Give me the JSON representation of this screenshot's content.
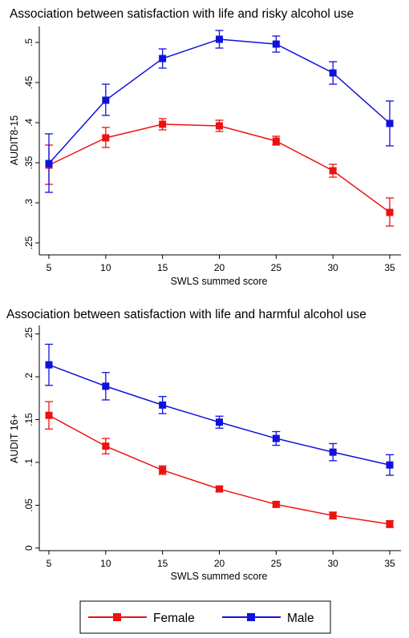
{
  "colors": {
    "female": "#ee1111",
    "male": "#1111dd"
  },
  "legend": {
    "female": "Female",
    "male": "Male",
    "marker": "square"
  },
  "chart_data": [
    {
      "type": "line",
      "title": "Association between satisfaction with life and risky alcohol use",
      "xlabel": "SWLS summed score",
      "ylabel": "AUDIT8-15",
      "x": [
        5,
        10,
        15,
        20,
        25,
        30,
        35
      ],
      "xticks": [
        "5",
        "10",
        "15",
        "20",
        "25",
        "30",
        "35"
      ],
      "yticks": [
        ".25",
        ".3",
        ".35",
        ".4",
        ".45",
        ".5"
      ],
      "ylim": [
        0.235,
        0.52
      ],
      "grid": false,
      "series": [
        {
          "name": "Female",
          "key": "female",
          "values": [
            0.347,
            0.381,
            0.398,
            0.396,
            0.377,
            0.34,
            0.288
          ],
          "ci_low": [
            0.323,
            0.369,
            0.391,
            0.389,
            0.372,
            0.332,
            0.271
          ],
          "ci_high": [
            0.372,
            0.394,
            0.405,
            0.403,
            0.383,
            0.348,
            0.306
          ]
        },
        {
          "name": "Male",
          "key": "male",
          "values": [
            0.349,
            0.428,
            0.48,
            0.504,
            0.498,
            0.462,
            0.399
          ],
          "ci_low": [
            0.313,
            0.409,
            0.468,
            0.493,
            0.488,
            0.448,
            0.371
          ],
          "ci_high": [
            0.386,
            0.448,
            0.492,
            0.515,
            0.508,
            0.476,
            0.427
          ]
        }
      ]
    },
    {
      "type": "line",
      "title": "Association between satisfaction with life and harmful alcohol use",
      "xlabel": "SWLS summed score",
      "ylabel": "AUDIT 16+",
      "x": [
        5,
        10,
        15,
        20,
        25,
        30,
        35
      ],
      "xticks": [
        "5",
        "10",
        "15",
        "20",
        "25",
        "30",
        "35"
      ],
      "yticks": [
        "0",
        ".05",
        ".1",
        ".15",
        ".2",
        ".25"
      ],
      "ylim": [
        -0.003,
        0.26
      ],
      "grid": false,
      "series": [
        {
          "name": "Female",
          "key": "female",
          "values": [
            0.155,
            0.119,
            0.091,
            0.069,
            0.051,
            0.038,
            0.028
          ],
          "ci_low": [
            0.139,
            0.11,
            0.086,
            0.066,
            0.048,
            0.034,
            0.024
          ],
          "ci_high": [
            0.171,
            0.128,
            0.096,
            0.072,
            0.054,
            0.042,
            0.032
          ]
        },
        {
          "name": "Male",
          "key": "male",
          "values": [
            0.214,
            0.189,
            0.167,
            0.147,
            0.128,
            0.112,
            0.097
          ],
          "ci_low": [
            0.19,
            0.173,
            0.157,
            0.14,
            0.12,
            0.102,
            0.085
          ],
          "ci_high": [
            0.238,
            0.205,
            0.177,
            0.154,
            0.136,
            0.122,
            0.109
          ]
        }
      ]
    }
  ]
}
